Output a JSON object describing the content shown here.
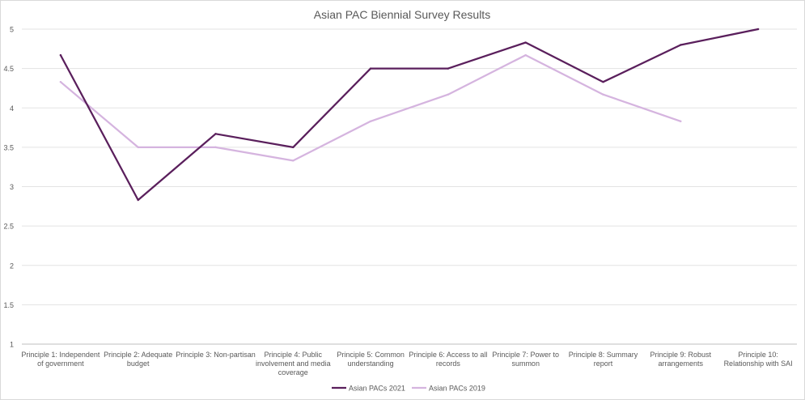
{
  "chart_data": {
    "type": "line",
    "title": "Asian PAC Biennial Survey Results",
    "xlabel": "",
    "ylabel": "",
    "ylim": [
      1,
      5
    ],
    "yticks": [
      "1",
      "1.5",
      "2",
      "2.5",
      "3",
      "3.5",
      "4",
      "4.5",
      "5"
    ],
    "grid": true,
    "legend_position": "bottom",
    "categories": [
      [
        "Principle 1: Independent",
        "of government"
      ],
      [
        "Principle 2: Adequate",
        "budget"
      ],
      [
        "Principle 3: Non-partisan"
      ],
      [
        "Principle 4: Public",
        "involvement and media",
        "coverage"
      ],
      [
        "Principle 5: Common",
        "understanding"
      ],
      [
        "Principle 6: Access to all",
        "records"
      ],
      [
        "Principle 7: Power to",
        "summon"
      ],
      [
        "Principle 8: Summary",
        "report"
      ],
      [
        "Principle 9: Robust",
        "arrangements"
      ],
      [
        "Principle 10:",
        "Relationship with SAI"
      ]
    ],
    "series": [
      {
        "name": "Asian PACs 2021",
        "color": "#5a1f5c",
        "values": [
          4.67,
          2.83,
          3.67,
          3.5,
          4.5,
          4.5,
          4.83,
          4.33,
          4.8,
          5.0
        ]
      },
      {
        "name": "Asian PACs 2019",
        "color": "#d5b4df",
        "values": [
          4.33,
          3.5,
          3.5,
          3.33,
          3.83,
          4.17,
          4.67,
          4.17,
          3.83,
          null
        ]
      }
    ]
  }
}
